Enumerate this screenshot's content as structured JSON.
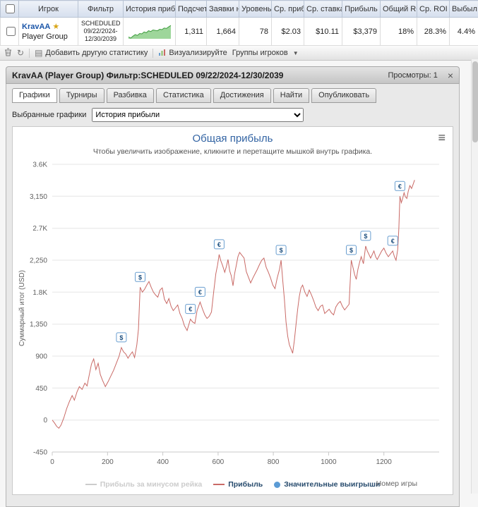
{
  "table": {
    "headers": [
      "Игрок",
      "Фильтр",
      "История прибыли",
      "Подсчет",
      "Заявки н",
      "Уровень",
      "Ср. приб",
      "Ср. ставка",
      "Прибыль",
      "Общий ROI",
      "Ср. ROI",
      "Выбыл ран"
    ],
    "row": {
      "player": "KravAA",
      "player_type": "Player Group",
      "filter_lines": [
        "SCHEDULED",
        "09/22/2024-",
        "12/30/2039"
      ],
      "count": "1,311",
      "entries": "1,664",
      "level": "78",
      "avg_profit": "$2.03",
      "avg_stake": "$10.11",
      "profit": "$3,379",
      "total_roi": "18%",
      "avg_roi": "28.3%",
      "early_bust": "4.4%"
    },
    "sparkline": {
      "values": [
        0,
        -3,
        2,
        6,
        4,
        9,
        8,
        13,
        11,
        16,
        14,
        18,
        17,
        16,
        20,
        19,
        23,
        22,
        26,
        30
      ],
      "fill": "#9ed69b",
      "stroke": "#3f9c3f"
    }
  },
  "toolbar": {
    "add_stat": "Добавить другую статистику",
    "visualize": "Визуализируйте",
    "player_groups": "Группы игроков"
  },
  "panel": {
    "title": "KravAA (Player Group) Фильтр:SCHEDULED 09/22/2024-12/30/2039",
    "views": "Просмотры: 1",
    "close": "×",
    "tabs": [
      "Графики",
      "Турниры",
      "Разбивка",
      "Статистика",
      "Достижения",
      "Найти",
      "Опубликовать"
    ],
    "chart_select_label": "Выбранные графики",
    "chart_select_value": "История прибыли",
    "burger": "≡"
  },
  "chart_data": {
    "type": "line",
    "title": "Общая прибыль",
    "subtitle": "Чтобы увеличить изображение, кликните и перетащите мышкой внутрь графика.",
    "xlabel": "Номер игры",
    "ylabel": "Суммарный итог (USD)",
    "xlim": [
      0,
      1400
    ],
    "ylim": [
      -450,
      3600
    ],
    "x_ticks": [
      0,
      200,
      400,
      600,
      800,
      1000,
      1200
    ],
    "y_tick_values": [
      -450,
      0,
      450,
      900,
      1350,
      1800,
      2250,
      2700,
      3150,
      3600
    ],
    "y_tick_labels": [
      "-450",
      "0",
      "450",
      "900",
      "1,350",
      "1.8K",
      "2,250",
      "2.7K",
      "3,150",
      "3.6K"
    ],
    "grid_color": "#e6e6e6",
    "axis_color": "#c8c8c8",
    "series": [
      {
        "name": "Прибыль за минусом рейка",
        "color": "#cccccc",
        "visible": false,
        "points": []
      },
      {
        "name": "Прибыль",
        "color": "#c96a66",
        "visible": true,
        "points": [
          [
            0,
            0
          ],
          [
            8,
            -40
          ],
          [
            16,
            -90
          ],
          [
            24,
            -115
          ],
          [
            32,
            -70
          ],
          [
            42,
            30
          ],
          [
            52,
            160
          ],
          [
            62,
            260
          ],
          [
            72,
            345
          ],
          [
            80,
            280
          ],
          [
            90,
            400
          ],
          [
            98,
            470
          ],
          [
            108,
            430
          ],
          [
            118,
            520
          ],
          [
            126,
            480
          ],
          [
            134,
            640
          ],
          [
            142,
            790
          ],
          [
            150,
            860
          ],
          [
            158,
            710
          ],
          [
            166,
            800
          ],
          [
            174,
            640
          ],
          [
            182,
            560
          ],
          [
            192,
            470
          ],
          [
            202,
            540
          ],
          [
            212,
            620
          ],
          [
            222,
            700
          ],
          [
            232,
            800
          ],
          [
            242,
            900
          ],
          [
            250,
            1020
          ],
          [
            258,
            960
          ],
          [
            266,
            930
          ],
          [
            274,
            870
          ],
          [
            282,
            920
          ],
          [
            290,
            960
          ],
          [
            298,
            880
          ],
          [
            306,
            1060
          ],
          [
            312,
            1280
          ],
          [
            318,
            1870
          ],
          [
            326,
            1800
          ],
          [
            334,
            1840
          ],
          [
            342,
            1900
          ],
          [
            350,
            1950
          ],
          [
            358,
            1870
          ],
          [
            366,
            1800
          ],
          [
            374,
            1760
          ],
          [
            382,
            1730
          ],
          [
            390,
            1830
          ],
          [
            398,
            1860
          ],
          [
            406,
            1700
          ],
          [
            414,
            1640
          ],
          [
            422,
            1710
          ],
          [
            430,
            1600
          ],
          [
            438,
            1540
          ],
          [
            446,
            1580
          ],
          [
            454,
            1620
          ],
          [
            462,
            1500
          ],
          [
            470,
            1430
          ],
          [
            478,
            1330
          ],
          [
            488,
            1260
          ],
          [
            500,
            1420
          ],
          [
            508,
            1380
          ],
          [
            516,
            1360
          ],
          [
            524,
            1540
          ],
          [
            535,
            1660
          ],
          [
            544,
            1560
          ],
          [
            552,
            1480
          ],
          [
            560,
            1430
          ],
          [
            568,
            1460
          ],
          [
            576,
            1520
          ],
          [
            584,
            1800
          ],
          [
            592,
            2060
          ],
          [
            598,
            2180
          ],
          [
            604,
            2330
          ],
          [
            610,
            2240
          ],
          [
            616,
            2180
          ],
          [
            624,
            2080
          ],
          [
            630,
            2160
          ],
          [
            636,
            2260
          ],
          [
            642,
            2100
          ],
          [
            648,
            2030
          ],
          [
            654,
            1890
          ],
          [
            660,
            2060
          ],
          [
            666,
            2180
          ],
          [
            672,
            2300
          ],
          [
            678,
            2360
          ],
          [
            686,
            2320
          ],
          [
            694,
            2280
          ],
          [
            702,
            2090
          ],
          [
            710,
            2010
          ],
          [
            718,
            1930
          ],
          [
            726,
            2000
          ],
          [
            734,
            2060
          ],
          [
            742,
            2120
          ],
          [
            750,
            2190
          ],
          [
            758,
            2250
          ],
          [
            766,
            2280
          ],
          [
            774,
            2150
          ],
          [
            782,
            2080
          ],
          [
            790,
            2000
          ],
          [
            798,
            1900
          ],
          [
            806,
            1850
          ],
          [
            814,
            2000
          ],
          [
            822,
            2120
          ],
          [
            828,
            2250
          ],
          [
            834,
            1960
          ],
          [
            840,
            1700
          ],
          [
            846,
            1380
          ],
          [
            852,
            1180
          ],
          [
            858,
            1060
          ],
          [
            864,
            1000
          ],
          [
            870,
            940
          ],
          [
            876,
            1120
          ],
          [
            882,
            1340
          ],
          [
            888,
            1560
          ],
          [
            894,
            1740
          ],
          [
            900,
            1860
          ],
          [
            906,
            1900
          ],
          [
            914,
            1800
          ],
          [
            922,
            1740
          ],
          [
            930,
            1830
          ],
          [
            938,
            1760
          ],
          [
            946,
            1680
          ],
          [
            954,
            1590
          ],
          [
            962,
            1540
          ],
          [
            970,
            1600
          ],
          [
            978,
            1620
          ],
          [
            986,
            1500
          ],
          [
            994,
            1530
          ],
          [
            1002,
            1560
          ],
          [
            1010,
            1510
          ],
          [
            1018,
            1480
          ],
          [
            1026,
            1590
          ],
          [
            1034,
            1640
          ],
          [
            1042,
            1670
          ],
          [
            1050,
            1600
          ],
          [
            1058,
            1550
          ],
          [
            1066,
            1590
          ],
          [
            1074,
            1630
          ],
          [
            1082,
            2250
          ],
          [
            1088,
            2150
          ],
          [
            1094,
            2050
          ],
          [
            1100,
            1980
          ],
          [
            1106,
            2120
          ],
          [
            1112,
            2220
          ],
          [
            1118,
            2300
          ],
          [
            1126,
            2200
          ],
          [
            1134,
            2450
          ],
          [
            1140,
            2380
          ],
          [
            1146,
            2330
          ],
          [
            1152,
            2280
          ],
          [
            1158,
            2330
          ],
          [
            1164,
            2380
          ],
          [
            1170,
            2300
          ],
          [
            1176,
            2260
          ],
          [
            1184,
            2320
          ],
          [
            1192,
            2380
          ],
          [
            1200,
            2420
          ],
          [
            1208,
            2350
          ],
          [
            1216,
            2300
          ],
          [
            1224,
            2340
          ],
          [
            1232,
            2380
          ],
          [
            1238,
            2300
          ],
          [
            1244,
            2250
          ],
          [
            1250,
            2400
          ],
          [
            1254,
            2700
          ],
          [
            1258,
            3150
          ],
          [
            1263,
            3060
          ],
          [
            1268,
            3120
          ],
          [
            1273,
            3200
          ],
          [
            1278,
            3140
          ],
          [
            1283,
            3120
          ],
          [
            1288,
            3220
          ],
          [
            1294,
            3300
          ],
          [
            1300,
            3260
          ],
          [
            1306,
            3320
          ],
          [
            1311,
            3379
          ]
        ]
      }
    ],
    "markers": {
      "name": "Значительные выигрыши",
      "color": "#6a9fd0",
      "dot_color": "#5b9bd5",
      "items": [
        {
          "x": 250,
          "y": 1020,
          "symbol": "$"
        },
        {
          "x": 318,
          "y": 1870,
          "symbol": "$"
        },
        {
          "x": 500,
          "y": 1420,
          "symbol": "€"
        },
        {
          "x": 535,
          "y": 1660,
          "symbol": "€"
        },
        {
          "x": 604,
          "y": 2330,
          "symbol": "€"
        },
        {
          "x": 828,
          "y": 2250,
          "symbol": "$"
        },
        {
          "x": 1082,
          "y": 2250,
          "symbol": "$"
        },
        {
          "x": 1134,
          "y": 2450,
          "symbol": "$"
        },
        {
          "x": 1232,
          "y": 2380,
          "symbol": "€"
        },
        {
          "x": 1258,
          "y": 3150,
          "symbol": "€"
        }
      ]
    }
  }
}
